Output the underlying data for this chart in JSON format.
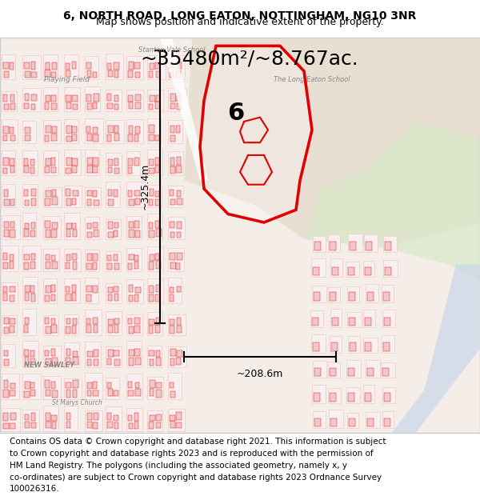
{
  "title_line1": "6, NORTH ROAD, LONG EATON, NOTTINGHAM, NG10 3NR",
  "title_line2": "Map shows position and indicative extent of the property.",
  "area_text": "~35480m²/~8.767ac.",
  "height_label": "~325.4m",
  "width_label": "~208.6m",
  "property_number": "6",
  "footer_lines": [
    "Contains OS data © Crown copyright and database right 2021. This information is subject",
    "to Crown copyright and database rights 2023 and is reproduced with the permission of",
    "HM Land Registry. The polygons (including the associated geometry, namely x, y",
    "co-ordinates) are subject to Crown copyright and database rights 2023 Ordnance Survey",
    "100026316."
  ],
  "map_bg_color": "#f5ede8",
  "title_bg_color": "#ffffff",
  "footer_bg_color": "#ffffff",
  "border_color": "#cccccc",
  "red_color": "#e00000",
  "street_color": "#f0c8c8",
  "building_color": "#e8b0b0",
  "green_area_color": "#d8e8c8",
  "school_color": "#e8ddd0",
  "water_color": "#c8d8e8",
  "title_fontsize": 10,
  "subtitle_fontsize": 9,
  "area_fontsize": 18,
  "label_fontsize": 9,
  "footer_fontsize": 7.5
}
